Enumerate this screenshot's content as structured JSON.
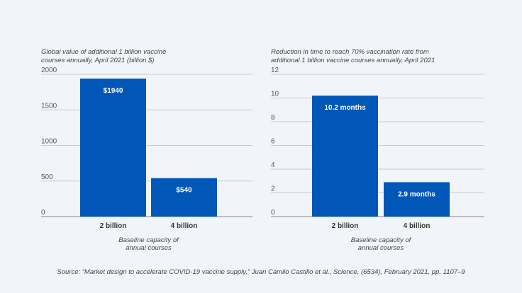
{
  "chart_data": [
    {
      "type": "bar",
      "title": [
        "Global value of additional 1 billion vaccine",
        "courses annually, April 2021 (billion $)"
      ],
      "categories": [
        "2 billion",
        "4 billion"
      ],
      "values": [
        1940,
        540
      ],
      "data_labels": [
        "$1940",
        "$540"
      ],
      "xlabel": [
        "Baseline capacity of",
        "annual courses"
      ],
      "ylim": [
        0,
        2000
      ],
      "yticks": [
        0,
        500,
        1000,
        1500,
        2000
      ],
      "grid": true,
      "color": "#0057b7"
    },
    {
      "type": "bar",
      "title": [
        "Reduction in time to reach 70% vaccination rate from",
        "additional 1 billion vaccine courses annually, April 2021"
      ],
      "categories": [
        "2 billion",
        "4 billion"
      ],
      "values": [
        10.2,
        2.9
      ],
      "data_labels": [
        "10.2 months",
        "2.9 months"
      ],
      "xlabel": [
        "Baseline capacity of",
        "annual courses"
      ],
      "ylim": [
        0,
        12
      ],
      "yticks": [
        0,
        2,
        4,
        6,
        8,
        10,
        12
      ],
      "grid": true,
      "color": "#0057b7"
    }
  ],
  "source": "Source: “Market design to accelerate COVID-19 vaccine supply,” Juan Camilo Castillo et al., Science, (6534), February 2021, pp. 1107–9"
}
